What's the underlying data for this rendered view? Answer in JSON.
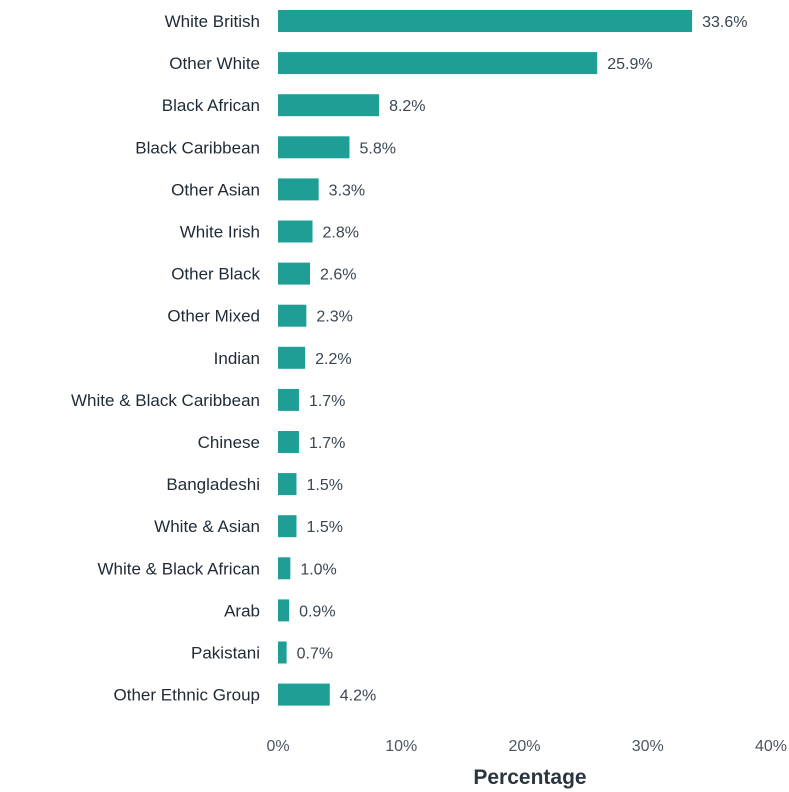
{
  "chart_data": {
    "type": "bar",
    "orientation": "horizontal",
    "categories": [
      "White British",
      "Other White",
      "Black African",
      "Black Caribbean",
      "Other Asian",
      "White Irish",
      "Other Black",
      "Other Mixed",
      "Indian",
      "White & Black Caribbean",
      "Chinese",
      "Bangladeshi",
      "White & Asian",
      "White & Black African",
      "Arab",
      "Pakistani",
      "Other Ethnic Group"
    ],
    "values": [
      33.6,
      25.9,
      8.2,
      5.8,
      3.3,
      2.8,
      2.6,
      2.3,
      2.2,
      1.7,
      1.7,
      1.5,
      1.5,
      1.0,
      0.9,
      0.7,
      4.2
    ],
    "value_labels": [
      "33.6%",
      "25.9%",
      "8.2%",
      "5.8%",
      "3.3%",
      "2.8%",
      "2.6%",
      "2.3%",
      "2.2%",
      "1.7%",
      "1.7%",
      "1.5%",
      "1.5%",
      "1.0%",
      "0.9%",
      "0.7%",
      "4.2%"
    ],
    "xlabel": "Percentage",
    "ylabel": "",
    "title": "",
    "xlim": [
      0,
      40
    ],
    "xticks": [
      0,
      10,
      20,
      30,
      40
    ],
    "xtick_labels": [
      "0%",
      "10%",
      "20%",
      "30%",
      "40%"
    ],
    "grid": false,
    "legend": "none",
    "bar_color": "#1f9e96"
  }
}
